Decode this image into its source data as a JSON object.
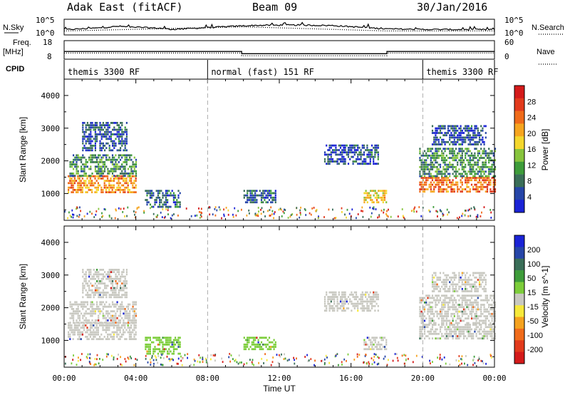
{
  "header": {
    "radar": "Adak East (fitACF)",
    "beam": "Beam 09",
    "date": "30/Jan/2016"
  },
  "chart_data": [
    {
      "type": "line",
      "panel": "noise",
      "left_label": "N.Sky",
      "right_label": "N.Search",
      "left_ticks": [
        "10^5",
        "10^0"
      ],
      "right_ticks": [
        "10^5",
        "10^0"
      ],
      "y_scale": "log",
      "series": [
        {
          "name": "N.Sky",
          "style": "solid",
          "x_hours": [
            0,
            2,
            3,
            5.5,
            6,
            10,
            11,
            13,
            15,
            18,
            20,
            24
          ],
          "values": [
            1.5,
            2.2,
            2.8,
            2.0,
            1.6,
            3.0,
            3.2,
            3.3,
            3.1,
            1.8,
            1.6,
            1.5
          ]
        },
        {
          "name": "N.Search",
          "style": "dotted",
          "x_hours": [
            0,
            10,
            18,
            24
          ],
          "values": [
            1.0,
            2.6,
            1.0,
            1.0
          ]
        }
      ]
    },
    {
      "type": "line",
      "panel": "frequency",
      "left_label_1": "Freq.",
      "left_label_2": "[MHz]",
      "right_label": "Nave",
      "left_ticks": [
        "18",
        "8"
      ],
      "right_ticks": [
        "60",
        "0"
      ],
      "series": [
        {
          "name": "Freq.",
          "style": "solid",
          "x_hours": [
            0,
            9.9,
            9.9,
            18,
            18,
            24
          ],
          "values": [
            12,
            12,
            10.6,
            10.6,
            12,
            12
          ]
        },
        {
          "name": "Nave",
          "style": "dotted",
          "x_hours": [
            0,
            9.9,
            9.9,
            18,
            18,
            24
          ],
          "values": [
            18,
            18,
            8,
            8,
            18,
            18
          ]
        }
      ]
    },
    {
      "type": "table",
      "panel": "cpid",
      "label": "CPID",
      "segments": [
        {
          "label": "themis 3300 RF",
          "start_hour": 0,
          "end_hour": 8
        },
        {
          "label": "normal (fast) 151 RF",
          "start_hour": 8,
          "end_hour": 20
        },
        {
          "label": "themis 3300 RF",
          "start_hour": 20,
          "end_hour": 24
        }
      ]
    },
    {
      "type": "heatmap",
      "panel": "power",
      "ylabel": "Slant Range [km]",
      "ylim": [
        180,
        4500
      ],
      "yticks": [
        1000,
        2000,
        3000,
        4000
      ],
      "colorbar_label": "Power [dB]",
      "colorbar_ticks": [
        4,
        8,
        12,
        16,
        20,
        24,
        28
      ],
      "colorbar_range": [
        0,
        32
      ],
      "colors": [
        "#1a23d6",
        "#2646a8",
        "#3a6e58",
        "#3e9c3a",
        "#87c43d",
        "#f4d72d",
        "#f6a51f",
        "#f06b1a",
        "#e23a1c",
        "#d41a1a"
      ],
      "echo_regions": [
        {
          "t": [
            0.2,
            4.0
          ],
          "r": [
            1050,
            1550
          ],
          "power": 22
        },
        {
          "t": [
            0.3,
            4.0
          ],
          "r": [
            1550,
            2200
          ],
          "power": 10
        },
        {
          "t": [
            1.0,
            3.5
          ],
          "r": [
            2300,
            3200
          ],
          "power": 5
        },
        {
          "t": [
            4.5,
            6.5
          ],
          "r": [
            600,
            1100
          ],
          "power": 6
        },
        {
          "t": [
            10.0,
            11.8
          ],
          "r": [
            700,
            1100
          ],
          "power": 6
        },
        {
          "t": [
            14.5,
            17.5
          ],
          "r": [
            1900,
            2500
          ],
          "power": 5
        },
        {
          "t": [
            16.7,
            18.0
          ],
          "r": [
            700,
            1100
          ],
          "power": 18
        },
        {
          "t": [
            19.8,
            24.0
          ],
          "r": [
            1050,
            1500
          ],
          "power": 24
        },
        {
          "t": [
            19.8,
            24.0
          ],
          "r": [
            1500,
            2400
          ],
          "power": 10
        },
        {
          "t": [
            20.5,
            23.5
          ],
          "r": [
            2500,
            3100
          ],
          "power": 5
        }
      ]
    },
    {
      "type": "heatmap",
      "panel": "velocity",
      "xlabel": "Time UT",
      "ylabel": "Slant Range [km]",
      "ylim": [
        180,
        4500
      ],
      "yticks": [
        1000,
        2000,
        3000,
        4000
      ],
      "xticks": [
        "00:00",
        "04:00",
        "08:00",
        "12:00",
        "16:00",
        "20:00",
        "00:00"
      ],
      "colorbar_label": "Velocity [m s^-1]",
      "colorbar_ticks": [
        200,
        100,
        50,
        15,
        -15,
        -50,
        -100,
        -200
      ],
      "colors": [
        "#1a23d6",
        "#2646a8",
        "#3a6e58",
        "#3e9c3a",
        "#7ccd3a",
        "#c8c8c0",
        "#f6e93a",
        "#f5a21e",
        "#f06b1a",
        "#e23a1c",
        "#d41a1a"
      ],
      "echo_regions": [
        {
          "t": [
            0.2,
            4.0
          ],
          "r": [
            1050,
            1550
          ],
          "velocity": 0
        },
        {
          "t": [
            0.3,
            4.0
          ],
          "r": [
            1550,
            2200
          ],
          "velocity": 0
        },
        {
          "t": [
            1.0,
            3.5
          ],
          "r": [
            2300,
            3200
          ],
          "velocity": 0
        },
        {
          "t": [
            4.5,
            6.5
          ],
          "r": [
            600,
            1100
          ],
          "velocity": 40
        },
        {
          "t": [
            10.0,
            11.8
          ],
          "r": [
            700,
            1100
          ],
          "velocity": 40
        },
        {
          "t": [
            14.5,
            17.5
          ],
          "r": [
            1900,
            2500
          ],
          "velocity": 0
        },
        {
          "t": [
            16.7,
            18.0
          ],
          "r": [
            700,
            1100
          ],
          "velocity": 0
        },
        {
          "t": [
            19.8,
            24.0
          ],
          "r": [
            1050,
            1500
          ],
          "velocity": 0
        },
        {
          "t": [
            19.8,
            24.0
          ],
          "r": [
            1500,
            2400
          ],
          "velocity": 0
        },
        {
          "t": [
            20.5,
            23.5
          ],
          "r": [
            2500,
            3100
          ],
          "velocity": 0
        }
      ]
    }
  ]
}
